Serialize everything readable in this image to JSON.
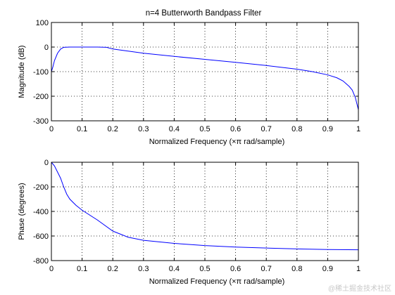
{
  "title": "n=4 Butterworth Bandpass Filter",
  "watermark": "@稀土掘金技术社区",
  "colors": {
    "line": "#0000ff",
    "axes": "#000000",
    "background": "#ffffff"
  },
  "chart_data": [
    {
      "type": "line",
      "title": "n=4 Butterworth Bandpass Filter",
      "xlabel": "Normalized Frequency  (×π rad/sample)",
      "ylabel": "Magnitude (dB)",
      "xlim": [
        0,
        1
      ],
      "ylim": [
        -300,
        100
      ],
      "xticks": [
        0,
        0.1,
        0.2,
        0.3,
        0.4,
        0.5,
        0.6,
        0.7,
        0.8,
        0.9,
        1
      ],
      "yticks": [
        -300,
        -200,
        -100,
        0,
        100
      ],
      "grid": true,
      "series": [
        {
          "x": [
            0.0,
            0.005,
            0.01,
            0.02,
            0.03,
            0.04,
            0.06,
            0.1,
            0.15,
            0.18,
            0.2,
            0.3,
            0.4,
            0.5,
            0.6,
            0.7,
            0.8,
            0.85,
            0.9,
            0.93,
            0.95,
            0.97,
            0.98,
            0.99,
            0.995,
            1.0
          ],
          "values": [
            -100,
            -80,
            -55,
            -25,
            -8,
            -1,
            0,
            0,
            0,
            -1,
            -8,
            -25,
            -38,
            -50,
            -62,
            -75,
            -90,
            -100,
            -113,
            -125,
            -138,
            -160,
            -175,
            -205,
            -230,
            -255
          ]
        }
      ]
    },
    {
      "type": "line",
      "xlabel": "Normalized Frequency  (×π rad/sample)",
      "ylabel": "Phase (degrees)",
      "xlim": [
        0,
        1
      ],
      "ylim": [
        -800,
        0
      ],
      "xticks": [
        0,
        0.1,
        0.2,
        0.3,
        0.4,
        0.5,
        0.6,
        0.7,
        0.8,
        0.9,
        1
      ],
      "yticks": [
        -800,
        -600,
        -400,
        -200,
        0
      ],
      "grid": true,
      "series": [
        {
          "x": [
            0.0,
            0.01,
            0.02,
            0.03,
            0.04,
            0.05,
            0.06,
            0.08,
            0.1,
            0.15,
            0.2,
            0.25,
            0.3,
            0.4,
            0.5,
            0.6,
            0.7,
            0.8,
            0.9,
            1.0
          ],
          "values": [
            0,
            -30,
            -80,
            -130,
            -200,
            -260,
            -300,
            -350,
            -390,
            -470,
            -560,
            -610,
            -635,
            -660,
            -678,
            -690,
            -698,
            -705,
            -710,
            -712
          ]
        }
      ]
    }
  ]
}
